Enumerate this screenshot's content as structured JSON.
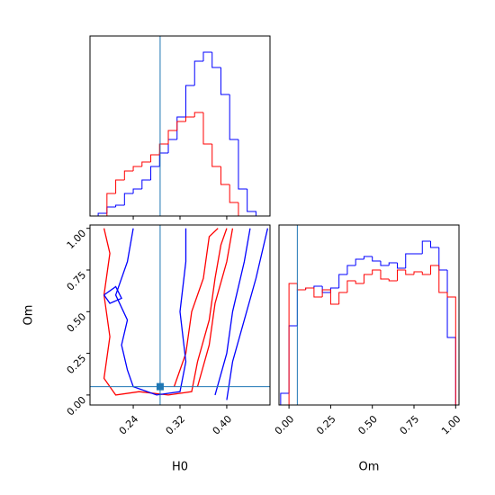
{
  "chart_data": [
    {
      "type": "histogram",
      "bins": [
        0.18,
        0.195,
        0.21,
        0.225,
        0.24,
        0.255,
        0.27,
        0.285,
        0.3,
        0.315,
        0.33,
        0.345,
        0.36,
        0.375,
        0.39,
        0.405,
        0.42,
        0.435,
        0.45
      ],
      "series": [
        {
          "color": "#0000ff",
          "values": [
            3,
            10,
            12,
            25,
            30,
            40,
            55,
            70,
            85,
            110,
            145,
            172,
            182,
            165,
            135,
            85,
            30,
            5
          ]
        },
        {
          "color": "#ff0000",
          "values": [
            0,
            25,
            40,
            50,
            55,
            60,
            68,
            80,
            95,
            105,
            110,
            115,
            80,
            55,
            35,
            15,
            0,
            0
          ]
        }
      ],
      "xlim": [
        0.166,
        0.474
      ],
      "ylim": [
        0,
        200
      ],
      "xticks": [
        0.24,
        0.32,
        0.4
      ],
      "truth": 0.286,
      "truth_color": "#1f77b4"
    },
    {
      "type": "contour",
      "xlabel": "H0",
      "ylabel": "Om",
      "xlim": [
        0.166,
        0.474
      ],
      "ylim": [
        -0.06,
        1.02
      ],
      "xticks": [
        0.24,
        0.32,
        {
          "value": 0.4,
          "label": "0.40"
        }
      ],
      "yticks": [
        {
          "value": 0,
          "label": "0.00"
        },
        0.25,
        {
          "value": 0.5,
          "label": "0.50"
        },
        0.75,
        {
          "value": 1,
          "label": "1.00"
        }
      ],
      "series": [
        {
          "color": "#ff0000",
          "lines": [
            {
              "x": [
                0.19,
                0.2,
                0.19,
                0.2,
                0.19,
                0.21,
                0.25,
                0.3,
                0.34,
                0.35,
                0.37,
                0.38,
                0.39,
                0.4
              ],
              "y": [
                1.0,
                0.85,
                0.6,
                0.35,
                0.1,
                0.0,
                0.02,
                0.0,
                0.02,
                0.2,
                0.45,
                0.7,
                0.9,
                1.0
              ]
            },
            {
              "x": [
                0.31,
                0.33,
                0.34,
                0.36,
                0.37,
                0.385
              ],
              "y": [
                0.05,
                0.25,
                0.5,
                0.7,
                0.95,
                1.0
              ]
            },
            {
              "x": [
                0.35,
                0.37,
                0.38,
                0.4,
                0.41
              ],
              "y": [
                0.05,
                0.3,
                0.55,
                0.8,
                1.0
              ]
            }
          ]
        },
        {
          "color": "#0000ff",
          "lines": [
            {
              "x": [
                0.4,
                0.41,
                0.43,
                0.45,
                0.47
              ],
              "y": [
                -0.03,
                0.2,
                0.45,
                0.7,
                1.0
              ]
            },
            {
              "x": [
                0.38,
                0.4,
                0.41,
                0.43,
                0.44
              ],
              "y": [
                0.0,
                0.25,
                0.5,
                0.8,
                1.0
              ]
            },
            {
              "x": [
                0.24,
                0.23,
                0.21,
                0.23,
                0.22,
                0.23,
                0.24,
                0.28,
                0.32,
                0.33,
                0.32,
                0.33,
                0.33
              ],
              "y": [
                1.0,
                0.8,
                0.6,
                0.45,
                0.3,
                0.15,
                0.05,
                0.0,
                0.02,
                0.2,
                0.5,
                0.8,
                1.0
              ]
            },
            {
              "x": [
                0.19,
                0.21,
                0.22,
                0.2,
                0.19
              ],
              "y": [
                0.6,
                0.65,
                0.58,
                0.55,
                0.6
              ]
            }
          ]
        }
      ],
      "truth": {
        "x": 0.286,
        "y": 0.05
      },
      "truth_color": "#1f77b4"
    },
    {
      "type": "histogram",
      "xlabel": "Om",
      "bins": [
        -0.05,
        0,
        0.05,
        0.1,
        0.15,
        0.2,
        0.25,
        0.3,
        0.35,
        0.4,
        0.45,
        0.5,
        0.55,
        0.6,
        0.65,
        0.7,
        0.75,
        0.8,
        0.85,
        0.9,
        0.95,
        1.0
      ],
      "series": [
        {
          "color": "#0000ff",
          "values": [
            13,
            88,
            128,
            130,
            132,
            125,
            130,
            145,
            155,
            162,
            165,
            160,
            155,
            158,
            152,
            168,
            168,
            182,
            175,
            150,
            75
          ]
        },
        {
          "color": "#ff0000",
          "values": [
            0,
            135,
            128,
            130,
            120,
            128,
            112,
            125,
            138,
            135,
            145,
            150,
            140,
            138,
            150,
            145,
            148,
            145,
            155,
            125,
            120
          ]
        }
      ],
      "xlim": [
        -0.06,
        1.02
      ],
      "ylim": [
        0,
        200
      ],
      "xticks": [
        {
          "value": 0,
          "label": "0.00"
        },
        0.25,
        {
          "value": 0.5,
          "label": "0.50"
        },
        0.75,
        {
          "value": 1,
          "label": "1.00"
        }
      ],
      "truth": 0.05,
      "truth_color": "#1f77b4"
    }
  ]
}
